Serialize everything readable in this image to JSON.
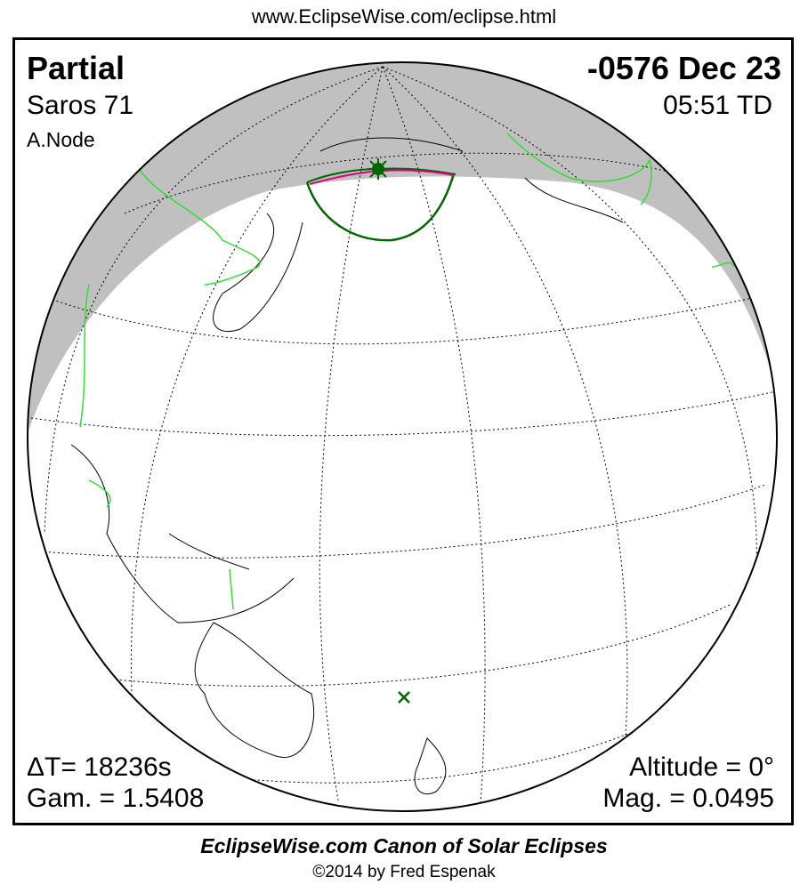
{
  "header": {
    "url": "www.EclipseWise.com/eclipse.html"
  },
  "eclipse": {
    "type": "Partial",
    "date": "-0576 Dec 23",
    "saros": "Saros  71",
    "time": "05:51 TD",
    "node": "A.Node",
    "delta_t": "ΔT=  18236s",
    "gamma": "Gam. = 1.5408",
    "altitude": "Altitude =  0°",
    "magnitude": "Mag. = 0.0495"
  },
  "map": {
    "night_color": "#c0c0c0",
    "border_color": "#33dd33",
    "eclipse_path_color": "#006600",
    "max_line_color": "#e0007a",
    "sun_icon": "sun-icon",
    "greatest_eclipse_marker": "x-icon"
  },
  "footer": {
    "title": "EclipseWise.com Canon of Solar Eclipses",
    "copyright": "©2014 by Fred Espenak"
  }
}
